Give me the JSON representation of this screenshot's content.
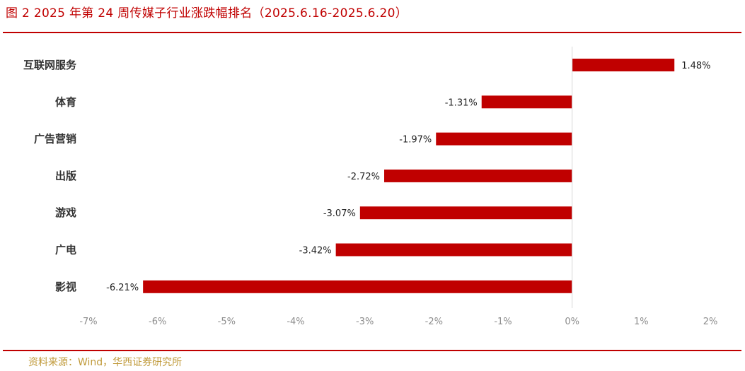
{
  "title": "图 2 2025 年第 24 周传媒子行业涨跌幅排名（2025.6.16-2025.6.20）",
  "source": "资料来源：Wind，华西证券研究所",
  "colors": {
    "accent": "#c00000",
    "bar": "#c00000",
    "source_text": "#c09a3a",
    "tick_text": "#8c8c8c"
  },
  "chart_data": {
    "type": "bar",
    "orientation": "horizontal",
    "categories": [
      "互联网服务",
      "体育",
      "广告营销",
      "出版",
      "游戏",
      "广电",
      "影视"
    ],
    "values": [
      1.48,
      -1.31,
      -1.97,
      -2.72,
      -3.07,
      -3.42,
      -6.21
    ],
    "value_labels": [
      "1.48%",
      "-1.31%",
      "-1.97%",
      "-2.72%",
      "-3.07%",
      "-3.42%",
      "-6.21%"
    ],
    "xlim": [
      -7,
      2
    ],
    "xticks": [
      "-7%",
      "-6%",
      "-5%",
      "-4%",
      "-3%",
      "-2%",
      "-1%",
      "0%",
      "1%",
      "2%"
    ],
    "grid": false,
    "legend": "none"
  }
}
